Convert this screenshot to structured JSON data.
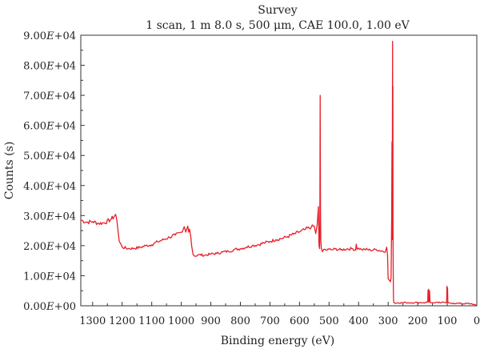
{
  "chart_data": {
    "type": "line",
    "title": "Survey",
    "subtitle": "1 scan, 1 m 8.0 s, 500 μm, CAE 100.0, 1.00 eV",
    "xlabel": "Binding energy (eV)",
    "ylabel": "Counts (s)",
    "xlim": [
      1340,
      0
    ],
    "ylim": [
      0,
      90000
    ],
    "x_ticks": [
      1300,
      1200,
      1100,
      1000,
      900,
      800,
      700,
      600,
      500,
      400,
      300,
      200,
      100,
      0
    ],
    "y_ticks": [
      0,
      10000,
      20000,
      30000,
      40000,
      50000,
      60000,
      70000,
      80000,
      90000
    ],
    "y_tick_labels": [
      "0.00E+00",
      "1.00E+04",
      "2.00E+04",
      "3.00E+04",
      "4.00E+04",
      "5.00E+04",
      "6.00E+04",
      "7.00E+04",
      "8.00E+04",
      "9.00E+04"
    ],
    "line_color": "#e8202a",
    "grid": false,
    "series": [
      {
        "x": [
          1340,
          1320,
          1300,
          1280,
          1260,
          1240,
          1228,
          1222,
          1218,
          1210,
          1200,
          1180,
          1160,
          1140,
          1120,
          1100,
          1080,
          1060,
          1040,
          1020,
          1000,
          990,
          985,
          978,
          975,
          972,
          968,
          965,
          960,
          950,
          940,
          920,
          900,
          880,
          860,
          840,
          820,
          800,
          780,
          760,
          740,
          720,
          700,
          680,
          660,
          640,
          620,
          600,
          580,
          560,
          550,
          545,
          540,
          536,
          534,
          532,
          531,
          530,
          529,
          528,
          526,
          522,
          518,
          510,
          500,
          490,
          480,
          460,
          440,
          420,
          410,
          408,
          405,
          400,
          390,
          380,
          360,
          340,
          320,
          310,
          305,
          302,
          300,
          296,
          292,
          290,
          288,
          287,
          286,
          285.5,
          285,
          284.5,
          284,
          283.5,
          283,
          282.5,
          282,
          281.5,
          281,
          280,
          278,
          276,
          272,
          265,
          250,
          240,
          230,
          220,
          210,
          200,
          190,
          180,
          170,
          166,
          165,
          164,
          163,
          162,
          160,
          158,
          156,
          150,
          140,
          130,
          120,
          110,
          105,
          102,
          101,
          100,
          99,
          98,
          96,
          90,
          80,
          70,
          60,
          40,
          20,
          10,
          5,
          2
        ],
        "y": [
          28500,
          27800,
          28000,
          27400,
          27600,
          28600,
          29600,
          30400,
          28500,
          21500,
          19500,
          19000,
          19100,
          19400,
          20000,
          20300,
          21300,
          22000,
          22800,
          23500,
          24500,
          26300,
          24500,
          26500,
          24500,
          25500,
          23000,
          20000,
          17000,
          16500,
          17000,
          16800,
          17200,
          17400,
          17900,
          18100,
          18700,
          19000,
          19500,
          20000,
          20300,
          20900,
          21400,
          22000,
          22400,
          23000,
          23800,
          24600,
          25400,
          26200,
          26500,
          24000,
          27000,
          33000,
          20000,
          19000,
          30000,
          70000,
          34000,
          22000,
          19000,
          18000,
          18800,
          18500,
          18800,
          18600,
          18900,
          18600,
          18900,
          19000,
          18500,
          20500,
          18800,
          19200,
          18700,
          18800,
          18500,
          18700,
          18200,
          17800,
          19500,
          16800,
          9000,
          8500,
          8000,
          9500,
          30000,
          54500,
          22000,
          65000,
          88000,
          40000,
          73000,
          25000,
          15000,
          8000,
          3000,
          1500,
          1200,
          1100,
          900,
          800,
          900,
          1000,
          1000,
          1100,
          1000,
          1000,
          1100,
          1000,
          1100,
          1000,
          1100,
          1500,
          5200,
          1200,
          5500,
          1200,
          5000,
          1300,
          1000,
          1000,
          1100,
          1000,
          1000,
          1100,
          1000,
          1300,
          6500,
          3000,
          6000,
          1200,
          1000,
          900,
          900,
          800,
          800,
          700,
          700,
          500,
          300,
          200
        ]
      }
    ]
  }
}
